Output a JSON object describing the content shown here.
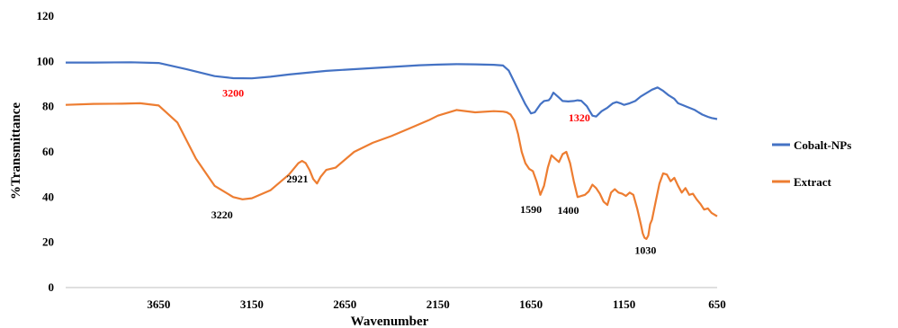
{
  "chart_data": {
    "type": "line",
    "title": "",
    "xlabel": "Wavenumber",
    "ylabel": "%Transmittance",
    "xlim": [
      4150,
      650
    ],
    "ylim": [
      0,
      120
    ],
    "x_reversed": true,
    "x_ticks": [
      3650,
      3150,
      2650,
      2150,
      1650,
      1150,
      650
    ],
    "y_ticks": [
      0,
      20,
      40,
      60,
      80,
      100,
      120
    ],
    "grid": false,
    "legend": "right",
    "series": [
      {
        "name": "Cobalt-NPs",
        "color": "#4472c4",
        "x": [
          4150,
          4000,
          3800,
          3650,
          3500,
          3350,
          3250,
          3150,
          3050,
          2950,
          2850,
          2750,
          2650,
          2550,
          2450,
          2350,
          2250,
          2150,
          2050,
          1950,
          1850,
          1800,
          1770,
          1740,
          1710,
          1680,
          1650,
          1630,
          1600,
          1580,
          1555,
          1545,
          1530,
          1500,
          1480,
          1450,
          1420,
          1400,
          1380,
          1350,
          1320,
          1300,
          1270,
          1240,
          1210,
          1190,
          1170,
          1150,
          1120,
          1090,
          1060,
          1030,
          1000,
          970,
          940,
          910,
          880,
          860,
          830,
          800,
          770,
          750,
          730,
          700,
          680,
          650
        ],
        "y": [
          99.5,
          99.5,
          99.6,
          99.3,
          96.5,
          93.5,
          92.6,
          92.5,
          93.2,
          94.2,
          95,
          95.8,
          96.3,
          96.8,
          97.3,
          97.8,
          98.3,
          98.6,
          98.8,
          98.7,
          98.5,
          98.2,
          96,
          91,
          86,
          81,
          77,
          77.5,
          81,
          82.5,
          82.8,
          83.8,
          86.2,
          84,
          82.5,
          82.3,
          82.5,
          82.8,
          82.6,
          80.2,
          76,
          75.6,
          78,
          79.5,
          81.5,
          82,
          81.5,
          80.8,
          81.5,
          82.5,
          84.5,
          86,
          87.5,
          88.5,
          87,
          85,
          83.5,
          81.5,
          80.5,
          79.5,
          78.5,
          77.5,
          76.5,
          75.5,
          75,
          74.5
        ]
      },
      {
        "name": "Extract",
        "color": "#ed7d31",
        "x": [
          4150,
          4000,
          3850,
          3750,
          3650,
          3550,
          3450,
          3350,
          3250,
          3200,
          3150,
          3050,
          2950,
          2900,
          2880,
          2860,
          2840,
          2820,
          2800,
          2780,
          2750,
          2700,
          2600,
          2500,
          2400,
          2300,
          2200,
          2150,
          2050,
          1950,
          1850,
          1800,
          1780,
          1760,
          1740,
          1720,
          1700,
          1680,
          1660,
          1640,
          1620,
          1600,
          1580,
          1560,
          1540,
          1520,
          1500,
          1480,
          1460,
          1440,
          1420,
          1400,
          1380,
          1360,
          1340,
          1320,
          1300,
          1280,
          1260,
          1240,
          1220,
          1200,
          1180,
          1160,
          1140,
          1120,
          1100,
          1080,
          1060,
          1050,
          1040,
          1030,
          1020,
          1010,
          1000,
          980,
          960,
          940,
          920,
          900,
          880,
          860,
          840,
          820,
          800,
          780,
          760,
          740,
          720,
          700,
          680,
          650
        ],
        "y": [
          80.8,
          81.2,
          81.3,
          81.5,
          80.5,
          73,
          57,
          45,
          40,
          39,
          39.5,
          43,
          50,
          55,
          56,
          55,
          52,
          48,
          46,
          49,
          52,
          53,
          60,
          64,
          67,
          70.5,
          74,
          76,
          78.5,
          77.5,
          78,
          77.8,
          77.5,
          76.5,
          74,
          68,
          60,
          55,
          52.5,
          51.5,
          47,
          41,
          45,
          53,
          58.5,
          57,
          55.5,
          59,
          60,
          55,
          47,
          40,
          40.5,
          41,
          42.5,
          45.5,
          44,
          41.5,
          38,
          36.5,
          42,
          43.5,
          42,
          41.5,
          40.5,
          42,
          41,
          35,
          28,
          24,
          22,
          21.5,
          23,
          28,
          30,
          38,
          46,
          50.5,
          50,
          47,
          48.5,
          45,
          42,
          44,
          41,
          41.5,
          39,
          37,
          34.5,
          35,
          33,
          31.5
        ]
      }
    ],
    "annotations": [
      {
        "text": "3200",
        "x": 3250,
        "y": 84.5,
        "color": "#ff0000"
      },
      {
        "text": "1320",
        "x": 1390,
        "y": 73.5,
        "color": "#ff0000"
      },
      {
        "text": "3220",
        "x": 3310,
        "y": 30.5,
        "color": "#000000"
      },
      {
        "text": "2921",
        "x": 2905,
        "y": 46.5,
        "color": "#000000"
      },
      {
        "text": "1590",
        "x": 1650,
        "y": 33,
        "color": "#000000"
      },
      {
        "text": "1400",
        "x": 1450,
        "y": 32.5,
        "color": "#000000"
      },
      {
        "text": "1030",
        "x": 1035,
        "y": 15,
        "color": "#000000"
      }
    ]
  }
}
